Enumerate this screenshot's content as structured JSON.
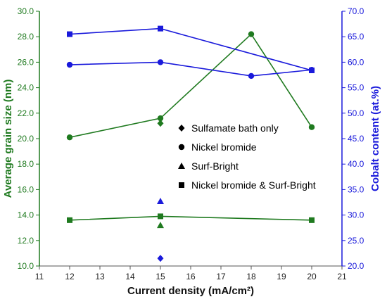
{
  "chart_data": {
    "type": "line",
    "title": "",
    "xlabel": "Current density (mA/cm²)",
    "ylabel_left": "Average grain size (nm)",
    "ylabel_right": "Cobalt content (at.%)",
    "xlim": [
      11,
      21
    ],
    "ylim_left": [
      10.0,
      30.0
    ],
    "ylim_right": [
      20.0,
      70.0
    ],
    "x_ticks": [
      "11",
      "12",
      "13",
      "14",
      "15",
      "16",
      "17",
      "18",
      "19",
      "20",
      "21"
    ],
    "y_left_ticks": [
      "10.0",
      "12.0",
      "14.0",
      "16.0",
      "18.0",
      "20.0",
      "22.0",
      "24.0",
      "26.0",
      "28.0",
      "30.0"
    ],
    "y_right_ticks": [
      "20.0",
      "25.0",
      "30.0",
      "35.0",
      "40.0",
      "45.0",
      "50.0",
      "55.0",
      "60.0",
      "65.0",
      "70.0"
    ],
    "grid": false,
    "colors": {
      "grain": "#1f7a1f",
      "cobalt": "#1a1adb"
    },
    "series": [
      {
        "axis": "left",
        "marker": "diamond",
        "color": "#1f7a1f",
        "line": false,
        "x": [
          15
        ],
        "y": [
          21.2
        ]
      },
      {
        "axis": "left",
        "marker": "circle",
        "color": "#1f7a1f",
        "line": true,
        "x": [
          12,
          15,
          18,
          20
        ],
        "y": [
          20.1,
          21.6,
          28.2,
          20.9
        ]
      },
      {
        "axis": "left",
        "marker": "triangle",
        "color": "#1f7a1f",
        "line": false,
        "x": [
          15
        ],
        "y": [
          13.2
        ]
      },
      {
        "axis": "left",
        "marker": "square",
        "color": "#1f7a1f",
        "line": true,
        "x": [
          12,
          15,
          20
        ],
        "y": [
          13.6,
          13.9,
          13.6
        ]
      },
      {
        "axis": "right",
        "marker": "diamond",
        "color": "#1a1adb",
        "line": false,
        "x": [
          15
        ],
        "y": [
          21.5
        ]
      },
      {
        "axis": "right",
        "marker": "circle",
        "color": "#1a1adb",
        "line": true,
        "x": [
          12,
          15,
          18,
          20
        ],
        "y": [
          59.5,
          60.0,
          57.3,
          58.5
        ]
      },
      {
        "axis": "right",
        "marker": "triangle",
        "color": "#1a1adb",
        "line": false,
        "x": [
          15
        ],
        "y": [
          32.7
        ]
      },
      {
        "axis": "right",
        "marker": "square",
        "color": "#1a1adb",
        "line": true,
        "x": [
          12,
          15,
          20
        ],
        "y": [
          65.5,
          66.6,
          58.4
        ]
      }
    ],
    "legend": {
      "placement": "center-right",
      "entries": [
        {
          "marker": "diamond",
          "label": "Sulfamate bath only"
        },
        {
          "marker": "circle",
          "label": "Nickel bromide"
        },
        {
          "marker": "triangle",
          "label": "Surf-Bright"
        },
        {
          "marker": "square",
          "label": "Nickel bromide & Surf-Bright"
        }
      ]
    }
  }
}
